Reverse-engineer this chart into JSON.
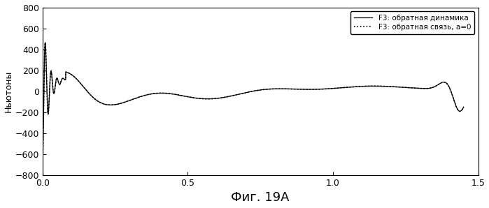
{
  "title": "",
  "xlabel": "Фиг. 19А",
  "ylabel": "Ньютоны",
  "xlim": [
    0,
    1.5
  ],
  "ylim": [
    -800,
    800
  ],
  "yticks": [
    -800,
    -600,
    -400,
    -200,
    0,
    200,
    400,
    600,
    800
  ],
  "xticks": [
    0,
    0.5,
    1.0,
    1.5
  ],
  "legend1": "F3: обратная связь, a=0",
  "legend2": "F3: обратная динамика",
  "bg_color": "#ffffff",
  "line_color": "#000000"
}
